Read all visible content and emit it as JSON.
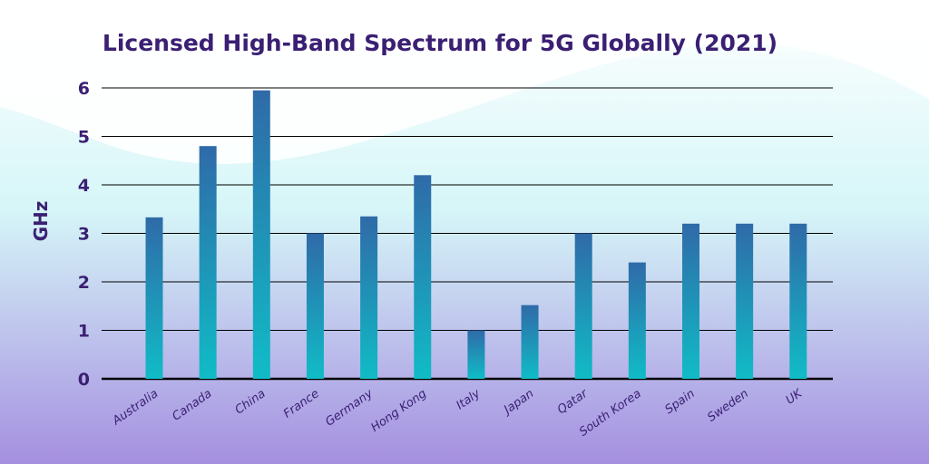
{
  "colors": {
    "title": "#3a1f73",
    "bar_top": "#2f6aa8",
    "bar_bottom": "#10bcc6",
    "bg_top": "#ffffff",
    "bg_mid": "#d6f6f8",
    "bg_bottom": "#a58fe0",
    "grid": "#000000"
  },
  "chart_data": {
    "type": "bar",
    "title": "Licensed High-Band Spectrum for 5G Globally (2021)",
    "xlabel": "",
    "ylabel": "GHz",
    "ylim": [
      0,
      6
    ],
    "yticks": [
      "0",
      "1",
      "2",
      "3",
      "4",
      "5",
      "6"
    ],
    "grid": true,
    "categories": [
      "Australia",
      "Canada",
      "China",
      "France",
      "Germany",
      "Hong Kong",
      "Italy",
      "Japan",
      "Qatar",
      "South Korea",
      "Spain",
      "Sweden",
      "UK"
    ],
    "values": [
      3.33,
      4.8,
      5.95,
      3.0,
      3.35,
      4.2,
      1.0,
      1.52,
      3.0,
      2.4,
      3.2,
      3.2,
      3.2
    ]
  }
}
